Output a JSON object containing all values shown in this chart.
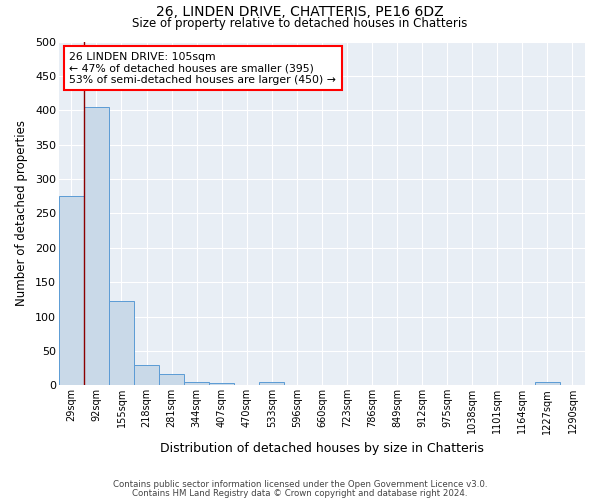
{
  "title_line1": "26, LINDEN DRIVE, CHATTERIS, PE16 6DZ",
  "title_line2": "Size of property relative to detached houses in Chatteris",
  "xlabel": "Distribution of detached houses by size in Chatteris",
  "ylabel": "Number of detached properties",
  "bin_labels": [
    "29sqm",
    "92sqm",
    "155sqm",
    "218sqm",
    "281sqm",
    "344sqm",
    "407sqm",
    "470sqm",
    "533sqm",
    "596sqm",
    "660sqm",
    "723sqm",
    "786sqm",
    "849sqm",
    "912sqm",
    "975sqm",
    "1038sqm",
    "1101sqm",
    "1164sqm",
    "1227sqm",
    "1290sqm"
  ],
  "bar_values": [
    275,
    405,
    122,
    29,
    16,
    5,
    4,
    0,
    5,
    0,
    0,
    0,
    0,
    0,
    0,
    0,
    0,
    0,
    0,
    5,
    0
  ],
  "bar_color": "#c9d9e8",
  "bar_edge_color": "#5b9bd5",
  "annotation_line1": "26 LINDEN DRIVE: 105sqm",
  "annotation_line2": "← 47% of detached houses are smaller (395)",
  "annotation_line3": "53% of semi-detached houses are larger (450) →",
  "annotation_box_color": "white",
  "annotation_box_edge_color": "red",
  "redline_x": 0.5,
  "ylim": [
    0,
    500
  ],
  "yticks": [
    0,
    50,
    100,
    150,
    200,
    250,
    300,
    350,
    400,
    450,
    500
  ],
  "background_color": "#e8eef5",
  "grid_color": "white",
  "footnote_line1": "Contains HM Land Registry data © Crown copyright and database right 2024.",
  "footnote_line2": "Contains public sector information licensed under the Open Government Licence v3.0."
}
